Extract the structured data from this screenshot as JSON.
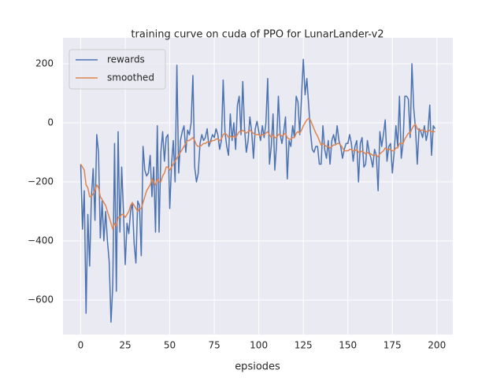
{
  "chart_data": {
    "type": "line",
    "title": "training curve on cuda of PPO for LunarLander-v2",
    "xlabel": "epsiodes",
    "x": [
      0,
      1,
      2,
      3,
      4,
      5,
      6,
      7,
      8,
      9,
      10,
      11,
      12,
      13,
      14,
      15,
      16,
      17,
      18,
      19,
      20,
      21,
      22,
      23,
      24,
      25,
      26,
      27,
      28,
      29,
      30,
      31,
      32,
      33,
      34,
      35,
      36,
      37,
      38,
      39,
      40,
      41,
      42,
      43,
      44,
      45,
      46,
      47,
      48,
      49,
      50,
      51,
      52,
      53,
      54,
      55,
      56,
      57,
      58,
      59,
      60,
      61,
      62,
      63,
      64,
      65,
      66,
      67,
      68,
      69,
      70,
      71,
      72,
      73,
      74,
      75,
      76,
      77,
      78,
      79,
      80,
      81,
      82,
      83,
      84,
      85,
      86,
      87,
      88,
      89,
      90,
      91,
      92,
      93,
      94,
      95,
      96,
      97,
      98,
      99,
      100,
      101,
      102,
      103,
      104,
      105,
      106,
      107,
      108,
      109,
      110,
      111,
      112,
      113,
      114,
      115,
      116,
      117,
      118,
      119,
      120,
      121,
      122,
      123,
      124,
      125,
      126,
      127,
      128,
      129,
      130,
      131,
      132,
      133,
      134,
      135,
      136,
      137,
      138,
      139,
      140,
      141,
      142,
      143,
      144,
      145,
      146,
      147,
      148,
      149,
      150,
      151,
      152,
      153,
      154,
      155,
      156,
      157,
      158,
      159,
      160,
      161,
      162,
      163,
      164,
      165,
      166,
      167,
      168,
      169,
      170,
      171,
      172,
      173,
      174,
      175,
      176,
      177,
      178,
      179,
      180,
      181,
      182,
      183,
      184,
      185,
      186,
      187,
      188,
      189,
      190,
      191,
      192,
      193,
      194,
      195,
      196,
      197,
      198,
      199
    ],
    "series": [
      {
        "name": "rewards",
        "color": "#4c72b0",
        "values": [
          -140,
          -360,
          -230,
          -645,
          -310,
          -485,
          -250,
          -155,
          -330,
          -40,
          -100,
          -390,
          -265,
          -400,
          -300,
          -400,
          -470,
          -675,
          -550,
          -70,
          -570,
          -30,
          -370,
          -150,
          -300,
          -480,
          -340,
          -375,
          -300,
          -270,
          -410,
          -475,
          -265,
          -280,
          -450,
          -80,
          -160,
          -180,
          -170,
          -110,
          -250,
          -150,
          -370,
          -10,
          -370,
          -100,
          -30,
          -130,
          -50,
          -40,
          -290,
          -140,
          -60,
          -200,
          195,
          -170,
          -60,
          -30,
          -10,
          -100,
          -25,
          -40,
          0,
          160,
          -150,
          -200,
          -170,
          -70,
          -40,
          -60,
          -50,
          -20,
          -80,
          -60,
          -40,
          -50,
          -20,
          -40,
          -90,
          -60,
          145,
          -30,
          -80,
          -110,
          30,
          -60,
          0,
          -90,
          60,
          90,
          -40,
          140,
          -20,
          -100,
          -60,
          20,
          -30,
          -120,
          -20,
          5,
          -30,
          -60,
          -10,
          -50,
          0,
          150,
          -140,
          -80,
          30,
          -160,
          -70,
          90,
          -40,
          -70,
          -30,
          20,
          -190,
          -60,
          -80,
          -10,
          -50,
          90,
          70,
          -40,
          90,
          215,
          95,
          150,
          60,
          -30,
          -90,
          -100,
          -80,
          -80,
          -140,
          -140,
          -10,
          -90,
          -120,
          -60,
          -140,
          -60,
          -40,
          -70,
          -10,
          -60,
          -80,
          -120,
          -90,
          -70,
          -70,
          -40,
          -70,
          -130,
          -80,
          -60,
          -200,
          -70,
          -50,
          -150,
          -140,
          -60,
          -100,
          -120,
          -150,
          -90,
          -110,
          -230,
          -30,
          -80,
          -40,
          10,
          -130,
          -80,
          -70,
          -170,
          -100,
          -10,
          -80,
          90,
          -120,
          -70,
          90,
          90,
          80,
          -50,
          200,
          50,
          -20,
          -140,
          -20,
          -30,
          -50,
          -10,
          -60,
          -30,
          60,
          -110,
          -10,
          -20
        ]
      },
      {
        "name": "smoothed",
        "color": "#dd8452",
        "values": [
          -140,
          -150,
          -160,
          -210,
          -220,
          -250,
          -250,
          -240,
          -230,
          -210,
          -220,
          -250,
          -260,
          -270,
          -280,
          -300,
          -320,
          -340,
          -360,
          -340,
          -350,
          -320,
          -320,
          -310,
          -310,
          -320,
          -310,
          -300,
          -280,
          -270,
          -280,
          -290,
          -300,
          -290,
          -290,
          -270,
          -250,
          -230,
          -220,
          -210,
          -190,
          -200,
          -210,
          -190,
          -200,
          -200,
          -180,
          -170,
          -150,
          -150,
          -160,
          -150,
          -140,
          -130,
          -120,
          -110,
          -100,
          -90,
          -80,
          -70,
          -60,
          -60,
          -55,
          -50,
          -60,
          -75,
          -80,
          -80,
          -75,
          -70,
          -70,
          -65,
          -65,
          -65,
          -60,
          -60,
          -55,
          -55,
          -60,
          -55,
          -40,
          -35,
          -40,
          -50,
          -45,
          -50,
          -45,
          -50,
          -40,
          -30,
          -30,
          -25,
          -30,
          -35,
          -30,
          -25,
          -30,
          -35,
          -40,
          -40,
          -40,
          -45,
          -40,
          -40,
          -35,
          -30,
          -40,
          -50,
          -40,
          -50,
          -50,
          -40,
          -40,
          -45,
          -40,
          -35,
          -50,
          -55,
          -55,
          -50,
          -50,
          -35,
          -30,
          -35,
          -25,
          -10,
          0,
          10,
          15,
          10,
          -5,
          -20,
          -35,
          -45,
          -60,
          -75,
          -70,
          -75,
          -80,
          -80,
          -85,
          -80,
          -75,
          -75,
          -70,
          -70,
          -75,
          -85,
          -95,
          -95,
          -95,
          -90,
          -90,
          -95,
          -95,
          -90,
          -100,
          -100,
          -95,
          -100,
          -105,
          -100,
          -105,
          -105,
          -110,
          -110,
          -110,
          -115,
          -105,
          -100,
          -95,
          -85,
          -90,
          -90,
          -90,
          -95,
          -95,
          -85,
          -85,
          -70,
          -70,
          -70,
          -55,
          -45,
          -35,
          -35,
          -20,
          -10,
          -5,
          -20,
          -25,
          -25,
          -25,
          -25,
          -30,
          -30,
          -25,
          -30,
          -30,
          -30
        ]
      }
    ],
    "xlim": [
      -9.95,
      208.95
    ],
    "ylim": [
      -717,
      288
    ],
    "xticks": [
      0,
      25,
      50,
      75,
      100,
      125,
      150,
      175,
      200
    ],
    "yticks": [
      {
        "value": -600,
        "label": "−600"
      },
      {
        "value": -400,
        "label": "−400"
      },
      {
        "value": -200,
        "label": "−200"
      },
      0,
      200
    ],
    "grid": true,
    "legend": "upper left"
  }
}
